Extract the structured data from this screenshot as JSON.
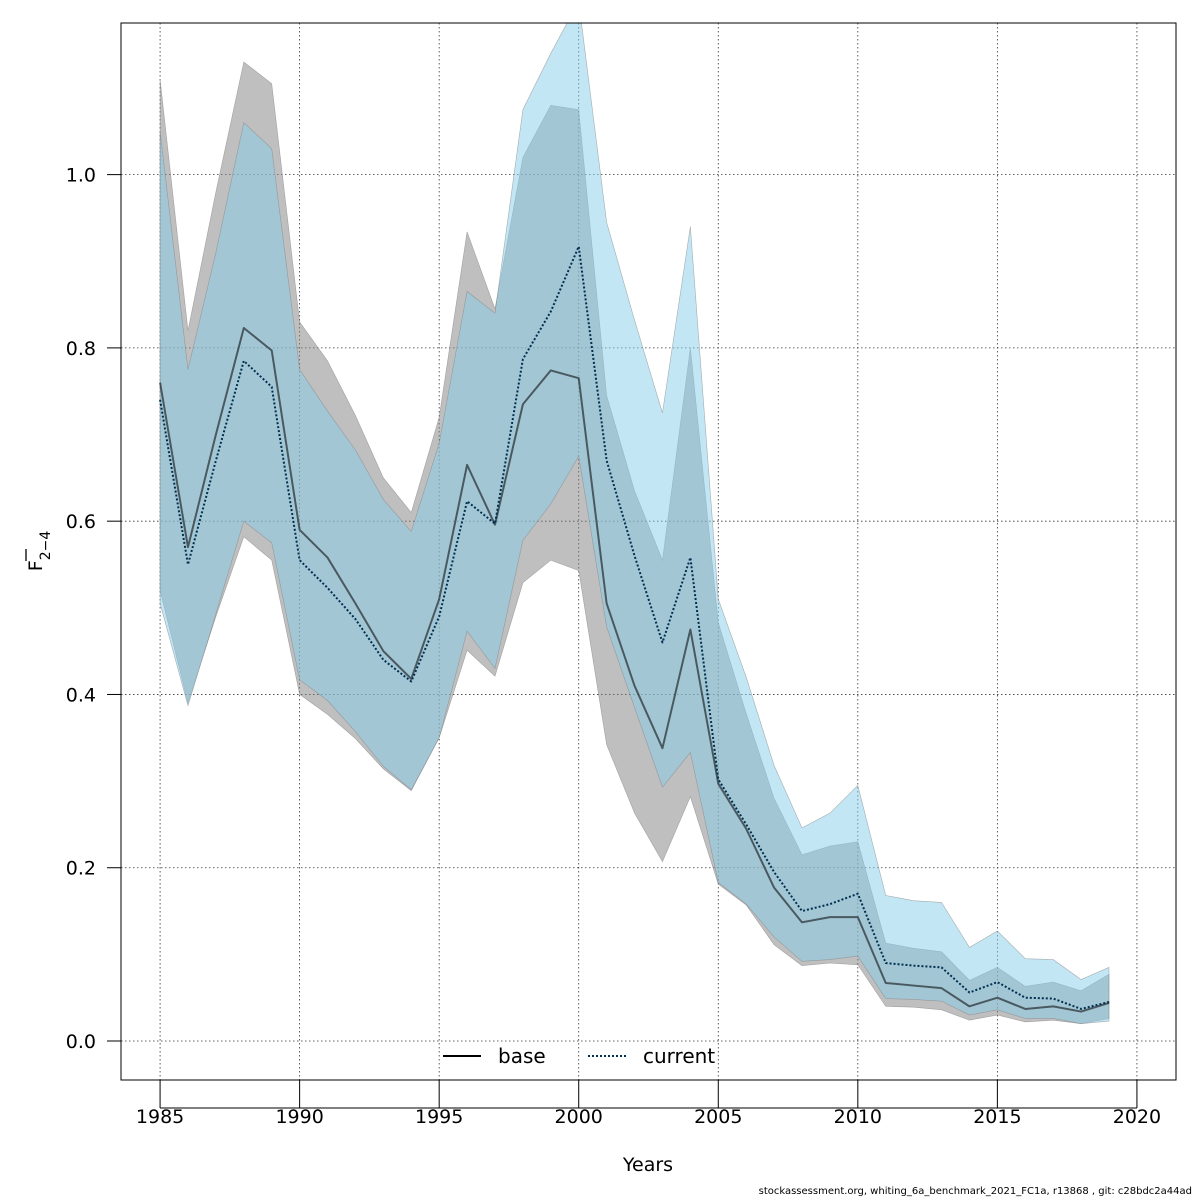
{
  "chart_data": {
    "type": "line",
    "xlabel": "Years",
    "ylabel": {
      "main": "F",
      "sub": "2−4"
    },
    "xlim": [
      1983.6,
      2021.4
    ],
    "ylim": [
      -0.045,
      1.175
    ],
    "xticks": [
      1985,
      1990,
      1995,
      2000,
      2005,
      2010,
      2015,
      2020
    ],
    "yticks": [
      0.0,
      0.2,
      0.4,
      0.6,
      0.8,
      1.0
    ],
    "ytick_labels": [
      "0.0",
      "0.2",
      "0.4",
      "0.6",
      "0.8",
      "1.0"
    ],
    "grid": true,
    "legend": {
      "position": "bottom",
      "entries": [
        "base",
        "current"
      ]
    },
    "x": [
      1985,
      1986,
      1987,
      1988,
      1989,
      1990,
      1991,
      1992,
      1993,
      1994,
      1995,
      1996,
      1997,
      1998,
      1999,
      2000,
      2001,
      2002,
      2003,
      2004,
      2005,
      2006,
      2007,
      2008,
      2009,
      2010,
      2011,
      2012,
      2013,
      2014,
      2015,
      2016,
      2017,
      2018,
      2019
    ],
    "series": [
      {
        "name": "base",
        "style": "solid",
        "color": "#000000",
        "band_color": "#7f7f7f",
        "values": [
          0.76,
          0.57,
          0.7,
          0.823,
          0.797,
          0.59,
          0.558,
          0.505,
          0.45,
          0.418,
          0.51,
          0.665,
          0.596,
          0.735,
          0.774,
          0.765,
          0.505,
          0.41,
          0.338,
          0.475,
          0.297,
          0.245,
          0.177,
          0.137,
          0.143,
          0.143,
          0.067,
          0.064,
          0.061,
          0.04,
          0.05,
          0.037,
          0.04,
          0.034,
          0.044
        ],
        "lower": [
          0.52,
          0.39,
          0.49,
          0.582,
          0.555,
          0.4,
          0.377,
          0.349,
          0.314,
          0.289,
          0.35,
          0.451,
          0.421,
          0.529,
          0.555,
          0.543,
          0.342,
          0.263,
          0.207,
          0.282,
          0.181,
          0.157,
          0.111,
          0.087,
          0.09,
          0.088,
          0.04,
          0.039,
          0.036,
          0.024,
          0.03,
          0.022,
          0.024,
          0.02,
          0.026
        ],
        "upper": [
          1.11,
          0.82,
          0.98,
          1.13,
          1.105,
          0.83,
          0.785,
          0.722,
          0.65,
          0.61,
          0.72,
          0.934,
          0.845,
          1.02,
          1.08,
          1.075,
          0.745,
          0.635,
          0.555,
          0.8,
          0.483,
          0.378,
          0.28,
          0.215,
          0.225,
          0.23,
          0.113,
          0.107,
          0.103,
          0.07,
          0.085,
          0.063,
          0.068,
          0.058,
          0.077
        ]
      },
      {
        "name": "current",
        "style": "dotted",
        "color": "#00304f",
        "band_color": "#87ceeb",
        "values": [
          0.74,
          0.55,
          0.67,
          0.785,
          0.755,
          0.555,
          0.523,
          0.487,
          0.44,
          0.415,
          0.49,
          0.623,
          0.597,
          0.787,
          0.842,
          0.917,
          0.67,
          0.56,
          0.46,
          0.558,
          0.302,
          0.25,
          0.195,
          0.15,
          0.158,
          0.17,
          0.09,
          0.087,
          0.085,
          0.056,
          0.068,
          0.05,
          0.049,
          0.037,
          0.045
        ],
        "lower": [
          0.505,
          0.387,
          0.493,
          0.6,
          0.575,
          0.417,
          0.393,
          0.357,
          0.317,
          0.29,
          0.35,
          0.473,
          0.43,
          0.578,
          0.62,
          0.675,
          0.478,
          0.385,
          0.293,
          0.333,
          0.183,
          0.158,
          0.12,
          0.092,
          0.094,
          0.098,
          0.049,
          0.048,
          0.046,
          0.03,
          0.036,
          0.026,
          0.026,
          0.02,
          0.023
        ],
        "upper": [
          1.05,
          0.775,
          0.91,
          1.06,
          1.03,
          0.775,
          0.727,
          0.682,
          0.625,
          0.588,
          0.69,
          0.865,
          0.84,
          1.075,
          1.14,
          1.2,
          0.945,
          0.832,
          0.725,
          0.94,
          0.51,
          0.42,
          0.318,
          0.246,
          0.263,
          0.295,
          0.168,
          0.162,
          0.16,
          0.108,
          0.127,
          0.095,
          0.094,
          0.071,
          0.085
        ]
      }
    ]
  },
  "footer": "stockassessment.org, whiting_6a_benchmark_2021_FC1a, r13868 , git: c28bdc2a44ad"
}
